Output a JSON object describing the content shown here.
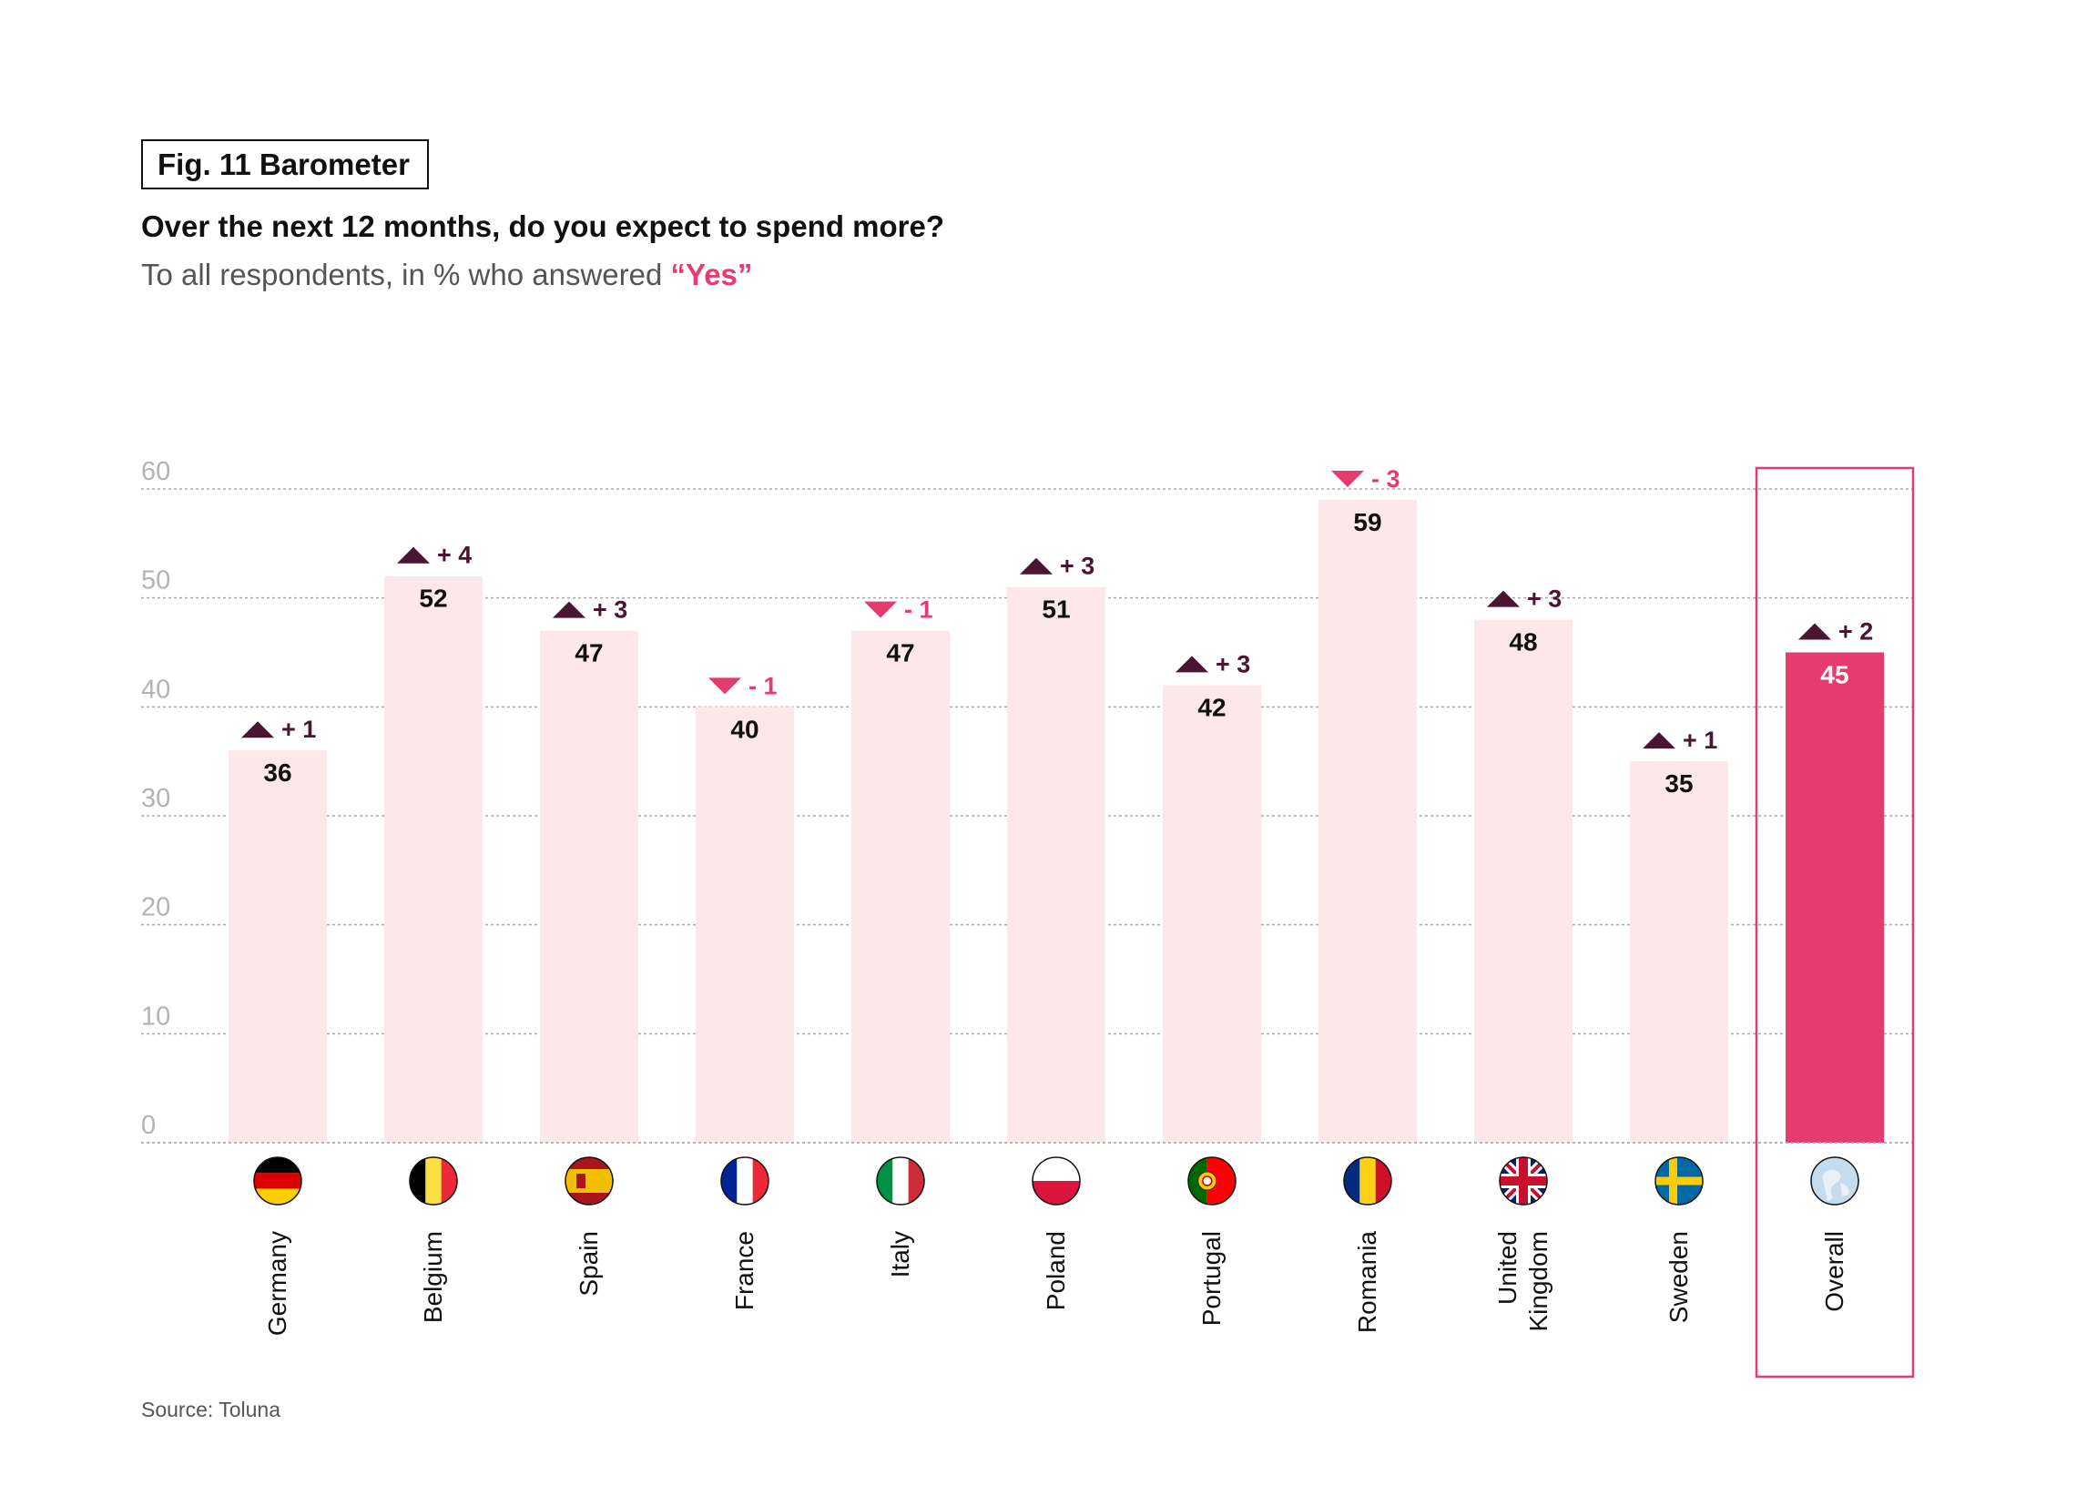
{
  "figure": {
    "label": "Fig. 11 Barometer",
    "title": "Over the next 12 months, do you expect to spend more?",
    "subtitle_prefix": "To all respondents, in % who answered ",
    "subtitle_highlight": "“Yes”",
    "source": "Source: Toluna"
  },
  "colors": {
    "bar": "#fce8eb",
    "highlight_bar": "#e63b6f",
    "up_arrow": "#4a1530",
    "down_arrow": "#e63b6f",
    "grid": "#a8a8a8",
    "tick_label": "#b3b3b3",
    "highlight_frame": "#e63b6f"
  },
  "chart_data": {
    "type": "bar",
    "ylim": [
      0,
      60
    ],
    "yticks": [
      0,
      10,
      20,
      30,
      40,
      50,
      60
    ],
    "grid": true,
    "categories": [
      "Germany",
      "Belgium",
      "Spain",
      "France",
      "Italy",
      "Poland",
      "Portugal",
      "Romania",
      "United Kingdom",
      "Sweden",
      "Overall"
    ],
    "category_lines": [
      [
        "Germany"
      ],
      [
        "Belgium"
      ],
      [
        "Spain"
      ],
      [
        "France"
      ],
      [
        "Italy"
      ],
      [
        "Poland"
      ],
      [
        "Portugal"
      ],
      [
        "Romania"
      ],
      [
        "United",
        "Kingdom"
      ],
      [
        "Sweden"
      ],
      [
        "Overall"
      ]
    ],
    "values": [
      36,
      52,
      47,
      40,
      47,
      51,
      42,
      59,
      48,
      35,
      45
    ],
    "value_labels": [
      "36",
      "52",
      "47",
      "40",
      "47",
      "51",
      "42",
      "59",
      "48",
      "35",
      "45"
    ],
    "changes": [
      1,
      4,
      3,
      -1,
      -1,
      3,
      3,
      -3,
      3,
      1,
      2
    ],
    "change_labels": [
      "+ 1",
      "+ 4",
      "+ 3",
      "- 1",
      "- 1",
      "+ 3",
      "+ 3",
      "- 3",
      "+ 3",
      "+ 1",
      "+ 2"
    ],
    "flags": [
      "germany-flag",
      "belgium-flag",
      "spain-flag",
      "france-flag",
      "italy-flag",
      "poland-flag",
      "portugal-flag",
      "romania-flag",
      "uk-flag",
      "sweden-flag",
      "europe-globe"
    ],
    "highlight_category": "Overall"
  }
}
